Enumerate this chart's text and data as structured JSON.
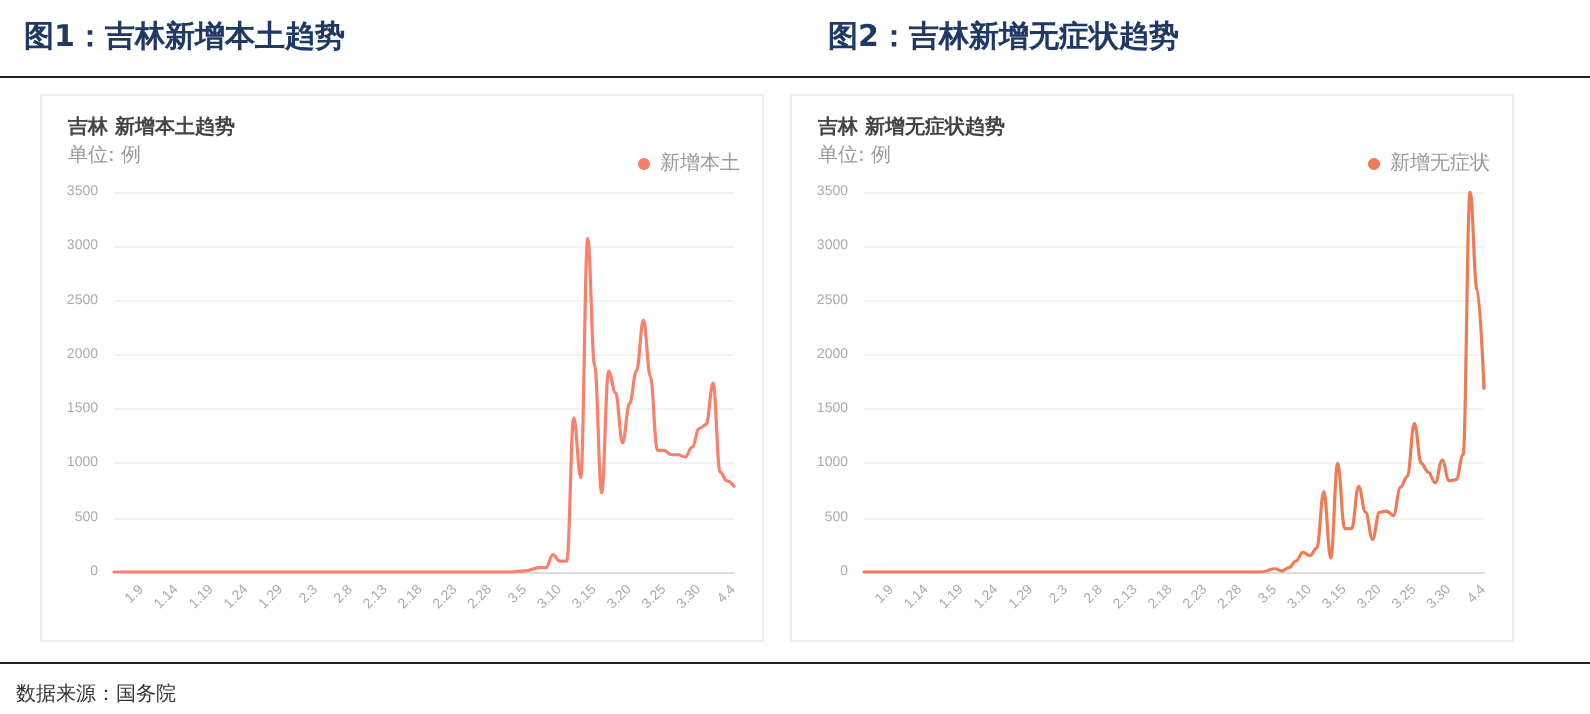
{
  "chart_data": [
    {
      "type": "line",
      "title": "图1：吉林新增本土趋势",
      "subtitle": "吉林 新增本土趋势",
      "ylabel": "单位: 例",
      "annotations": [
        "数据来源：国务院"
      ],
      "legend": "top right",
      "grid": "y",
      "marker": "none",
      "line_style": "solid",
      "xlim": [
        "--01-05",
        "--04-04"
      ],
      "xticks": [
        {
          "value": "--01-09",
          "label": "1.9"
        },
        {
          "value": "--01-14",
          "label": "1.14"
        },
        {
          "value": "--01-19",
          "label": "1.19"
        },
        {
          "value": "--01-24",
          "label": "1.24"
        },
        {
          "value": "--01-29",
          "label": "1.29"
        },
        {
          "value": "--02-03",
          "label": "2.3"
        },
        {
          "value": "--02-08",
          "label": "2.8"
        },
        {
          "value": "--02-13",
          "label": "2.13"
        },
        {
          "value": "--02-18",
          "label": "2.18"
        },
        {
          "value": "--02-23",
          "label": "2.23"
        },
        {
          "value": "--02-28",
          "label": "2.28"
        },
        {
          "value": "--03-05",
          "label": "3.5"
        },
        {
          "value": "--03-10",
          "label": "3.10"
        },
        {
          "value": "--03-15",
          "label": "3.15"
        },
        {
          "value": "--03-20",
          "label": "3.20"
        },
        {
          "value": "--03-25",
          "label": "3.25"
        },
        {
          "value": "--03-30",
          "label": "3.30"
        },
        {
          "value": "--04-04",
          "label": "4.4"
        }
      ],
      "ylim": [
        0,
        3500
      ],
      "yticks": [
        0,
        500,
        1000,
        1500,
        2000,
        2500,
        3000,
        3500
      ],
      "series": [
        {
          "name": "新增本土",
          "color": "#f8806c",
          "x": [
            "--01-05",
            "--03-01",
            "--03-03",
            "--03-05",
            "--03-07",
            "--03-08",
            "--03-09",
            "--03-10",
            "--03-11",
            "--03-12",
            "--03-13",
            "--03-14",
            "--03-15",
            "--03-16",
            "--03-17",
            "--03-18",
            "--03-19",
            "--03-20",
            "--03-21",
            "--03-22",
            "--03-23",
            "--03-24",
            "--03-25",
            "--03-26",
            "--03-27",
            "--03-28",
            "--03-29",
            "--03-30",
            "--03-31",
            "--04-01",
            "--04-02",
            "--04-03",
            "--04-04"
          ],
          "values": [
            0,
            0,
            0,
            10,
            40,
            40,
            160,
            100,
            100,
            1420,
            870,
            3070,
            1900,
            730,
            1850,
            1650,
            1190,
            1550,
            1850,
            2320,
            1800,
            1120,
            1120,
            1080,
            1080,
            1060,
            1150,
            1320,
            1360,
            1740,
            920,
            840,
            790
          ]
        }
      ]
    },
    {
      "type": "line",
      "title": "图2：吉林新增无症状趋势",
      "subtitle": "吉林 新增无症状趋势",
      "ylabel": "单位: 例",
      "legend": "top right",
      "grid": "y",
      "marker": "none",
      "line_style": "solid",
      "xlim": [
        "--01-05",
        "--04-04"
      ],
      "xticks": [
        {
          "value": "--01-09",
          "label": "1.9"
        },
        {
          "value": "--01-14",
          "label": "1.14"
        },
        {
          "value": "--01-19",
          "label": "1.19"
        },
        {
          "value": "--01-24",
          "label": "1.24"
        },
        {
          "value": "--01-29",
          "label": "1.29"
        },
        {
          "value": "--02-03",
          "label": "2.3"
        },
        {
          "value": "--02-08",
          "label": "2.8"
        },
        {
          "value": "--02-13",
          "label": "2.13"
        },
        {
          "value": "--02-18",
          "label": "2.18"
        },
        {
          "value": "--02-23",
          "label": "2.23"
        },
        {
          "value": "--02-28",
          "label": "2.28"
        },
        {
          "value": "--03-05",
          "label": "3.5"
        },
        {
          "value": "--03-10",
          "label": "3.10"
        },
        {
          "value": "--03-15",
          "label": "3.15"
        },
        {
          "value": "--03-20",
          "label": "3.20"
        },
        {
          "value": "--03-25",
          "label": "3.25"
        },
        {
          "value": "--03-30",
          "label": "3.30"
        },
        {
          "value": "--04-04",
          "label": "4.4"
        }
      ],
      "ylim": [
        0,
        3500
      ],
      "yticks": [
        0,
        500,
        1000,
        1500,
        2000,
        2500,
        3000,
        3500
      ],
      "series": [
        {
          "name": "新增无症状",
          "color": "#ef7b56",
          "x": [
            "--01-05",
            "--03-01",
            "--03-03",
            "--03-05",
            "--03-06",
            "--03-07",
            "--03-08",
            "--03-09",
            "--03-10",
            "--03-11",
            "--03-12",
            "--03-13",
            "--03-14",
            "--03-15",
            "--03-16",
            "--03-17",
            "--03-18",
            "--03-19",
            "--03-20",
            "--03-21",
            "--03-22",
            "--03-23",
            "--03-24",
            "--03-25",
            "--03-26",
            "--03-27",
            "--03-28",
            "--03-29",
            "--03-30",
            "--03-31",
            "--04-01",
            "--04-02",
            "--04-03",
            "--04-04"
          ],
          "values": [
            0,
            0,
            0,
            30,
            10,
            40,
            100,
            180,
            150,
            220,
            740,
            130,
            1000,
            400,
            400,
            790,
            550,
            300,
            550,
            560,
            520,
            780,
            880,
            1370,
            1000,
            920,
            820,
            1030,
            840,
            850,
            1080,
            3500,
            2600,
            1690
          ]
        }
      ]
    }
  ]
}
